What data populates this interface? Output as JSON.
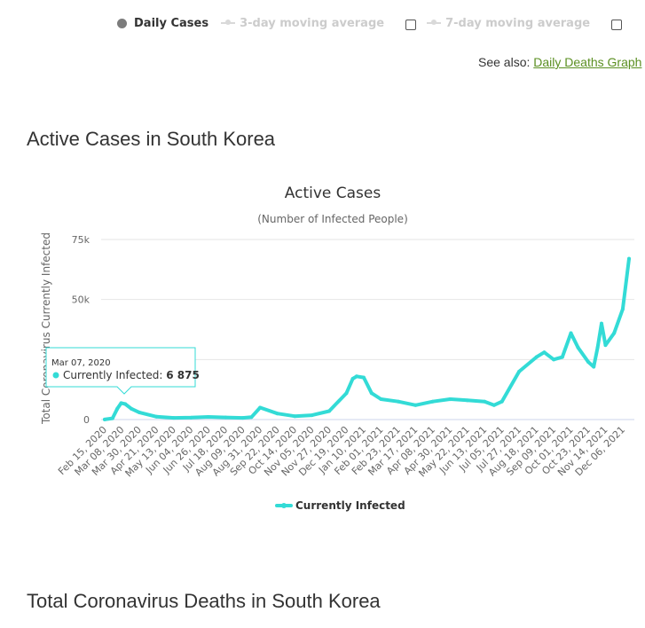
{
  "legend_top": {
    "daily_cases": "Daily Cases",
    "avg3": "3-day moving average",
    "avg7": "7-day moving average"
  },
  "see_also": {
    "prefix": "See also: ",
    "link": "Daily Deaths Graph"
  },
  "headings": {
    "active": "Active Cases in South Korea",
    "deaths": "Total Coronavirus Deaths in South Korea"
  },
  "colors": {
    "series": "#33dbd6",
    "tooltip_border": "#33dbd6",
    "link": "#5b8f22",
    "grid": "#e6e6e6"
  },
  "tooltip": {
    "date": "Mar 07, 2020",
    "series": "Currently Infected",
    "value": "6 875"
  },
  "chart_data": {
    "type": "line",
    "title": "Active Cases",
    "subtitle": "(Number of Infected People)",
    "ylabel": "Total Coronavirus Currently Infected",
    "ylim": [
      0,
      75000
    ],
    "yticks": [
      0,
      25000,
      50000,
      75000
    ],
    "ytick_labels": [
      "0",
      "25k",
      "50k",
      "75k"
    ],
    "xtick_labels": [
      "Feb 15, 2020",
      "Mar 08, 2020",
      "Mar 30, 2020",
      "Apr 21, 2020",
      "May 13, 2020",
      "Jun 04, 2020",
      "Jun 26, 2020",
      "Jul 18, 2020",
      "Aug 09, 2020",
      "Aug 31, 2020",
      "Sep 22, 2020",
      "Oct 14, 2020",
      "Nov 05, 2020",
      "Nov 27, 2020",
      "Dec 19, 2020",
      "Jan 10, 2021",
      "Feb 01, 2021",
      "Feb 23, 2021",
      "Mar 17, 2021",
      "Apr 08, 2021",
      "Apr 30, 2021",
      "May 22, 2021",
      "Jun 13, 2021",
      "Jul 05, 2021",
      "Jul 27, 2021",
      "Aug 18, 2021",
      "Sep 09, 2021",
      "Oct 01, 2021",
      "Oct 23, 2021",
      "Nov 14, 2021",
      "Dec 06, 2021"
    ],
    "legend": "bottom-center",
    "grid": true,
    "series": [
      {
        "name": "Currently Infected",
        "x": [
          "Feb 15, 2020",
          "Feb 25, 2020",
          "Mar 02, 2020",
          "Mar 07, 2020",
          "Mar 12, 2020",
          "Mar 20, 2020",
          "Mar 30, 2020",
          "Apr 21, 2020",
          "May 13, 2020",
          "Jun 04, 2020",
          "Jun 26, 2020",
          "Jul 18, 2020",
          "Aug 09, 2020",
          "Aug 20, 2020",
          "Aug 31, 2020",
          "Sep 22, 2020",
          "Oct 14, 2020",
          "Nov 05, 2020",
          "Nov 27, 2020",
          "Dec 19, 2020",
          "Dec 27, 2020",
          "Jan 01, 2021",
          "Jan 10, 2021",
          "Jan 20, 2021",
          "Feb 01, 2021",
          "Feb 23, 2021",
          "Mar 17, 2021",
          "Apr 08, 2021",
          "Apr 30, 2021",
          "May 22, 2021",
          "Jun 13, 2021",
          "Jun 25, 2021",
          "Jul 05, 2021",
          "Jul 27, 2021",
          "Aug 18, 2021",
          "Aug 28, 2021",
          "Sep 09, 2021",
          "Sep 20, 2021",
          "Oct 01, 2021",
          "Oct 10, 2021",
          "Oct 23, 2021",
          "Oct 30, 2021",
          "Nov 04, 2021",
          "Nov 09, 2021",
          "Nov 14, 2021",
          "Nov 25, 2021",
          "Dec 06, 2021",
          "Dec 14, 2021"
        ],
        "values": [
          30,
          500,
          4500,
          6875,
          6500,
          4500,
          3000,
          1200,
          700,
          800,
          1100,
          900,
          700,
          1000,
          5000,
          2500,
          1400,
          1800,
          3500,
          11000,
          17000,
          18000,
          17500,
          11000,
          8500,
          7500,
          6000,
          7500,
          8500,
          8000,
          7500,
          6000,
          7500,
          20000,
          26000,
          28000,
          25000,
          26000,
          36000,
          30000,
          24000,
          22000,
          30000,
          40000,
          31000,
          36000,
          46000,
          67000
        ]
      }
    ]
  }
}
